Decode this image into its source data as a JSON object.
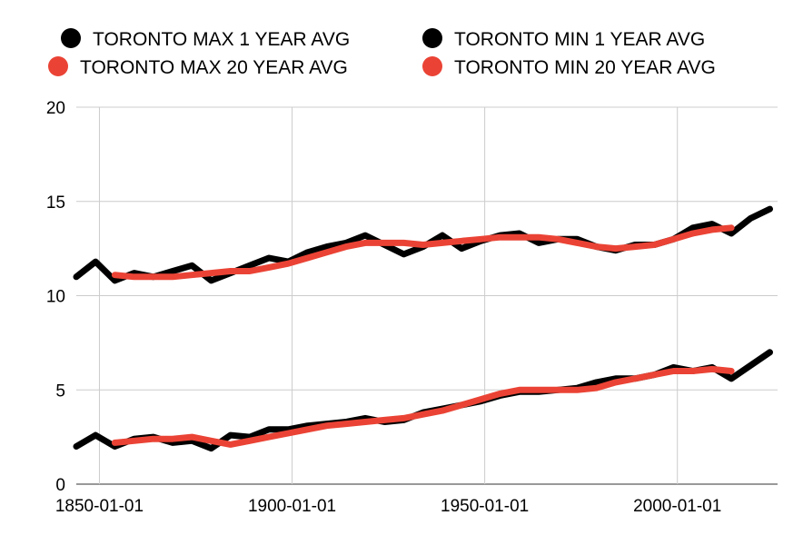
{
  "chart_data": {
    "type": "line",
    "title": "",
    "xlabel": "",
    "ylabel": "",
    "x_axis_type": "date",
    "xlim": [
      "1844-01-01",
      "2026-01-01"
    ],
    "ylim": [
      0,
      20
    ],
    "grid": true,
    "legend_position": "top",
    "x_ticks": [
      "1850-01-01",
      "1900-01-01",
      "1950-01-01",
      "2000-01-01"
    ],
    "y_ticks": [
      "0",
      "5",
      "10",
      "15",
      "20"
    ],
    "series": [
      {
        "name": "TORONTO MAX 1 YEAR AVG",
        "color": "#000000",
        "x": [
          "1844-01-01",
          "1849-01-01",
          "1854-01-01",
          "1859-01-01",
          "1864-01-01",
          "1869-01-01",
          "1874-01-01",
          "1879-01-01",
          "1884-01-01",
          "1889-01-01",
          "1894-01-01",
          "1899-01-01",
          "1904-01-01",
          "1909-01-01",
          "1914-01-01",
          "1919-01-01",
          "1924-01-01",
          "1929-01-01",
          "1934-01-01",
          "1939-01-01",
          "1944-01-01",
          "1949-01-01",
          "1954-01-01",
          "1959-01-01",
          "1964-01-01",
          "1969-01-01",
          "1974-01-01",
          "1979-01-01",
          "1984-01-01",
          "1989-01-01",
          "1994-01-01",
          "1999-01-01",
          "2004-01-01",
          "2009-01-01",
          "2014-01-01",
          "2019-01-01",
          "2024-01-01"
        ],
        "y": [
          11.0,
          11.8,
          10.8,
          11.2,
          11.0,
          11.3,
          11.6,
          10.8,
          11.2,
          11.6,
          12.0,
          11.8,
          12.3,
          12.6,
          12.8,
          13.2,
          12.7,
          12.2,
          12.6,
          13.2,
          12.5,
          12.9,
          13.2,
          13.3,
          12.8,
          13.0,
          13.0,
          12.6,
          12.4,
          12.7,
          12.7,
          13.0,
          13.6,
          13.8,
          13.3,
          14.1,
          14.6
        ]
      },
      {
        "name": "TORONTO MIN 1 YEAR AVG",
        "color": "#000000",
        "x": [
          "1844-01-01",
          "1849-01-01",
          "1854-01-01",
          "1859-01-01",
          "1864-01-01",
          "1869-01-01",
          "1874-01-01",
          "1879-01-01",
          "1884-01-01",
          "1889-01-01",
          "1894-01-01",
          "1899-01-01",
          "1904-01-01",
          "1909-01-01",
          "1914-01-01",
          "1919-01-01",
          "1924-01-01",
          "1929-01-01",
          "1934-01-01",
          "1939-01-01",
          "1944-01-01",
          "1949-01-01",
          "1954-01-01",
          "1959-01-01",
          "1964-01-01",
          "1969-01-01",
          "1974-01-01",
          "1979-01-01",
          "1984-01-01",
          "1989-01-01",
          "1994-01-01",
          "1999-01-01",
          "2004-01-01",
          "2009-01-01",
          "2014-01-01",
          "2019-01-01",
          "2024-01-01"
        ],
        "y": [
          2.0,
          2.6,
          2.0,
          2.4,
          2.5,
          2.2,
          2.3,
          1.9,
          2.6,
          2.5,
          2.9,
          2.9,
          3.1,
          3.2,
          3.3,
          3.5,
          3.3,
          3.4,
          3.8,
          4.0,
          4.2,
          4.4,
          4.7,
          4.9,
          4.9,
          5.0,
          5.1,
          5.4,
          5.6,
          5.6,
          5.8,
          6.2,
          6.0,
          6.2,
          5.6,
          6.3,
          7.0
        ]
      },
      {
        "name": "TORONTO MAX 20 YEAR AVG",
        "color": "#ea4335",
        "x": [
          "1854-01-01",
          "1859-01-01",
          "1864-01-01",
          "1869-01-01",
          "1874-01-01",
          "1879-01-01",
          "1884-01-01",
          "1889-01-01",
          "1894-01-01",
          "1899-01-01",
          "1904-01-01",
          "1909-01-01",
          "1914-01-01",
          "1919-01-01",
          "1924-01-01",
          "1929-01-01",
          "1934-01-01",
          "1939-01-01",
          "1944-01-01",
          "1949-01-01",
          "1954-01-01",
          "1959-01-01",
          "1964-01-01",
          "1969-01-01",
          "1974-01-01",
          "1979-01-01",
          "1984-01-01",
          "1989-01-01",
          "1994-01-01",
          "1999-01-01",
          "2004-01-01",
          "2009-01-01",
          "2014-01-01"
        ],
        "y": [
          11.1,
          11.0,
          11.0,
          11.0,
          11.1,
          11.2,
          11.3,
          11.3,
          11.5,
          11.7,
          12.0,
          12.3,
          12.6,
          12.8,
          12.8,
          12.8,
          12.7,
          12.8,
          12.9,
          13.0,
          13.1,
          13.1,
          13.1,
          13.0,
          12.8,
          12.6,
          12.5,
          12.6,
          12.7,
          13.0,
          13.3,
          13.5,
          13.6
        ]
      },
      {
        "name": "TORONTO MIN 20 YEAR AVG",
        "color": "#ea4335",
        "x": [
          "1854-01-01",
          "1859-01-01",
          "1864-01-01",
          "1869-01-01",
          "1874-01-01",
          "1879-01-01",
          "1884-01-01",
          "1889-01-01",
          "1894-01-01",
          "1899-01-01",
          "1904-01-01",
          "1909-01-01",
          "1914-01-01",
          "1919-01-01",
          "1924-01-01",
          "1929-01-01",
          "1934-01-01",
          "1939-01-01",
          "1944-01-01",
          "1949-01-01",
          "1954-01-01",
          "1959-01-01",
          "1964-01-01",
          "1969-01-01",
          "1974-01-01",
          "1979-01-01",
          "1984-01-01",
          "1989-01-01",
          "1994-01-01",
          "1999-01-01",
          "2004-01-01",
          "2009-01-01",
          "2014-01-01"
        ],
        "y": [
          2.2,
          2.3,
          2.4,
          2.4,
          2.5,
          2.3,
          2.1,
          2.3,
          2.5,
          2.7,
          2.9,
          3.1,
          3.2,
          3.3,
          3.4,
          3.5,
          3.7,
          3.9,
          4.2,
          4.5,
          4.8,
          5.0,
          5.0,
          5.0,
          5.0,
          5.1,
          5.4,
          5.6,
          5.8,
          6.0,
          6.0,
          6.1,
          6.0
        ]
      }
    ]
  }
}
